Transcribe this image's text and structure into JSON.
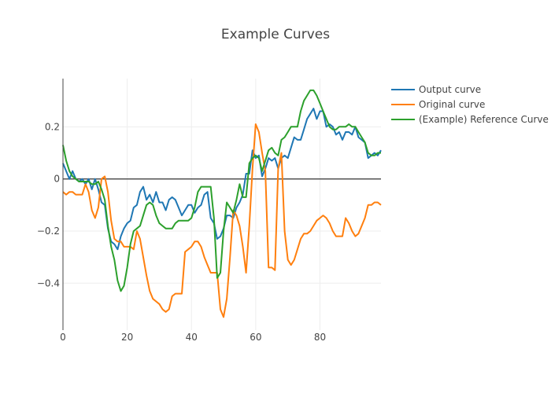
{
  "chart_data": {
    "type": "line",
    "title": "Example Curves",
    "xlabel": "",
    "ylabel": "",
    "xlim": [
      0,
      99
    ],
    "ylim": [
      -0.58,
      0.385
    ],
    "xticks": [
      0,
      20,
      40,
      60,
      80
    ],
    "yticks": [
      -0.4,
      -0.2,
      0,
      0.2
    ],
    "ytick_labels": [
      "−0.4",
      "−0.2",
      "0",
      "0.2"
    ],
    "grid": true,
    "zero_line": true,
    "legend_position": "top-right",
    "series": [
      {
        "name": "Output curve",
        "color": "#1f77b4",
        "values": [
          0.06,
          0.03,
          0.0,
          0.03,
          0.0,
          -0.01,
          0.0,
          -0.02,
          0.0,
          -0.04,
          0.0,
          -0.04,
          -0.09,
          -0.1,
          -0.19,
          -0.24,
          -0.25,
          -0.27,
          -0.22,
          -0.19,
          -0.17,
          -0.16,
          -0.11,
          -0.1,
          -0.05,
          -0.03,
          -0.08,
          -0.06,
          -0.09,
          -0.05,
          -0.09,
          -0.09,
          -0.12,
          -0.08,
          -0.07,
          -0.08,
          -0.11,
          -0.14,
          -0.12,
          -0.1,
          -0.1,
          -0.13,
          -0.11,
          -0.1,
          -0.06,
          -0.05,
          -0.15,
          -0.17,
          -0.23,
          -0.22,
          -0.19,
          -0.14,
          -0.14,
          -0.15,
          -0.11,
          -0.09,
          -0.06,
          0.02,
          0.02,
          0.11,
          0.08,
          0.09,
          0.01,
          0.04,
          0.08,
          0.07,
          0.08,
          0.04,
          0.08,
          0.09,
          0.08,
          0.12,
          0.16,
          0.15,
          0.15,
          0.19,
          0.23,
          0.25,
          0.27,
          0.23,
          0.26,
          0.26,
          0.2,
          0.21,
          0.2,
          0.17,
          0.18,
          0.15,
          0.18,
          0.18,
          0.17,
          0.2,
          0.16,
          0.15,
          0.14,
          0.08,
          0.09,
          0.1,
          0.09,
          0.11
        ]
      },
      {
        "name": "Original curve",
        "color": "#ff7f0e",
        "values": [
          -0.05,
          -0.06,
          -0.05,
          -0.05,
          -0.06,
          -0.06,
          -0.06,
          -0.02,
          -0.05,
          -0.12,
          -0.15,
          -0.11,
          0.0,
          0.01,
          -0.05,
          -0.16,
          -0.23,
          -0.24,
          -0.24,
          -0.26,
          -0.26,
          -0.26,
          -0.27,
          -0.2,
          -0.23,
          -0.3,
          -0.37,
          -0.43,
          -0.46,
          -0.47,
          -0.48,
          -0.5,
          -0.51,
          -0.5,
          -0.45,
          -0.44,
          -0.44,
          -0.44,
          -0.28,
          -0.27,
          -0.26,
          -0.24,
          -0.24,
          -0.26,
          -0.3,
          -0.33,
          -0.36,
          -0.36,
          -0.36,
          -0.5,
          -0.53,
          -0.46,
          -0.3,
          -0.12,
          -0.14,
          -0.18,
          -0.26,
          -0.36,
          -0.18,
          0.04,
          0.21,
          0.18,
          0.1,
          0.03,
          -0.34,
          -0.34,
          -0.35,
          0.04,
          0.1,
          -0.2,
          -0.31,
          -0.33,
          -0.31,
          -0.27,
          -0.23,
          -0.21,
          -0.21,
          -0.2,
          -0.18,
          -0.16,
          -0.15,
          -0.14,
          -0.15,
          -0.17,
          -0.2,
          -0.22,
          -0.22,
          -0.22,
          -0.15,
          -0.17,
          -0.2,
          -0.22,
          -0.21,
          -0.18,
          -0.15,
          -0.1,
          -0.1,
          -0.09,
          -0.09,
          -0.1
        ]
      },
      {
        "name": "(Example) Reference Curve",
        "color": "#2ca02c",
        "values": [
          0.13,
          0.07,
          0.03,
          0.01,
          0.0,
          -0.01,
          -0.01,
          -0.01,
          -0.01,
          -0.02,
          -0.02,
          -0.01,
          -0.04,
          -0.08,
          -0.18,
          -0.26,
          -0.31,
          -0.39,
          -0.43,
          -0.41,
          -0.34,
          -0.25,
          -0.2,
          -0.19,
          -0.18,
          -0.14,
          -0.1,
          -0.09,
          -0.1,
          -0.14,
          -0.17,
          -0.18,
          -0.19,
          -0.19,
          -0.19,
          -0.17,
          -0.16,
          -0.16,
          -0.16,
          -0.16,
          -0.15,
          -0.11,
          -0.05,
          -0.03,
          -0.03,
          -0.03,
          -0.03,
          -0.15,
          -0.38,
          -0.36,
          -0.2,
          -0.09,
          -0.11,
          -0.13,
          -0.08,
          -0.02,
          -0.07,
          -0.07,
          0.06,
          0.08,
          0.09,
          0.08,
          0.03,
          0.07,
          0.11,
          0.12,
          0.1,
          0.09,
          0.15,
          0.16,
          0.18,
          0.2,
          0.2,
          0.2,
          0.26,
          0.3,
          0.32,
          0.34,
          0.34,
          0.32,
          0.29,
          0.26,
          0.23,
          0.2,
          0.19,
          0.19,
          0.2,
          0.2,
          0.2,
          0.21,
          0.2,
          0.2,
          0.18,
          0.16,
          0.14,
          0.1,
          0.09,
          0.09,
          0.1,
          0.1
        ]
      }
    ]
  }
}
